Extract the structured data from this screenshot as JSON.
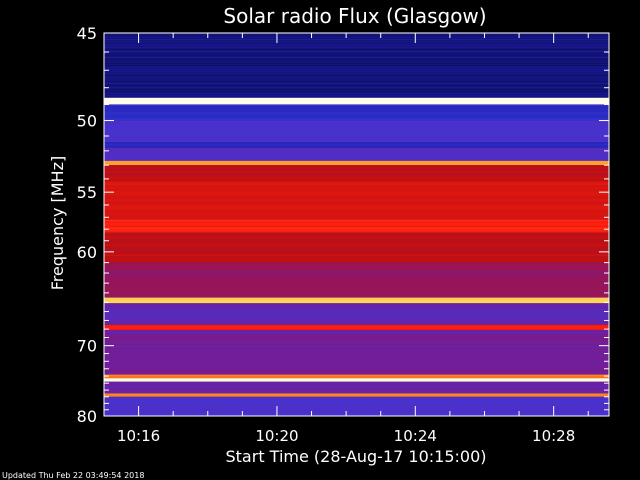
{
  "chart_data": {
    "type": "heatmap",
    "title": "Solar radio Flux (Glasgow)",
    "xlabel": "Start Time (28-Aug-17 10:15:00)",
    "ylabel": "Frequency [MHz]",
    "footer": "Updated Thu Feb 22 03:49:54 2018",
    "x_ticks": [
      "10:16",
      "10:20",
      "10:24",
      "10:28"
    ],
    "x_tick_minutes": [
      1,
      5,
      9,
      13
    ],
    "x_range_minutes": [
      0,
      14.6
    ],
    "y_ticks": [
      45,
      50,
      55,
      60,
      70,
      80
    ],
    "y_range_mhz": [
      45,
      80
    ],
    "y_scale": "reciprocal",
    "colormap": [
      "#0a0a40",
      "#1a1aa0",
      "#3a3ae0",
      "#7a1a90",
      "#c01010",
      "#ff2010",
      "#ff8c20",
      "#ffe060",
      "#ffffff"
    ],
    "frequency_bands": [
      {
        "f0": 45,
        "f1": 48.6,
        "level": 0.08
      },
      {
        "f0": 48.6,
        "f1": 49.0,
        "level": 0.98
      },
      {
        "f0": 49.0,
        "f1": 50.0,
        "level": 0.2
      },
      {
        "f0": 50.0,
        "f1": 51.4,
        "level": 0.28
      },
      {
        "f0": 51.4,
        "f1": 51.8,
        "level": 0.18
      },
      {
        "f0": 51.8,
        "f1": 52.7,
        "level": 0.3
      },
      {
        "f0": 52.7,
        "f1": 53.0,
        "level": 0.78
      },
      {
        "f0": 53.0,
        "f1": 54.2,
        "level": 0.5
      },
      {
        "f0": 54.2,
        "f1": 57.2,
        "level": 0.55
      },
      {
        "f0": 57.2,
        "f1": 58.3,
        "level": 0.62
      },
      {
        "f0": 58.3,
        "f1": 61.0,
        "level": 0.5
      },
      {
        "f0": 61.0,
        "f1": 64.5,
        "level": 0.42
      },
      {
        "f0": 64.5,
        "f1": 65.1,
        "level": 0.86
      },
      {
        "f0": 65.1,
        "f1": 67.5,
        "level": 0.32
      },
      {
        "f0": 67.5,
        "f1": 68.1,
        "level": 0.62
      },
      {
        "f0": 68.1,
        "f1": 73.8,
        "level": 0.36
      },
      {
        "f0": 73.8,
        "f1": 74.3,
        "level": 0.72
      },
      {
        "f0": 74.3,
        "f1": 74.8,
        "level": 0.98
      },
      {
        "f0": 74.8,
        "f1": 76.5,
        "level": 0.34
      },
      {
        "f0": 76.5,
        "f1": 77.0,
        "level": 0.74
      },
      {
        "f0": 77.0,
        "f1": 80.0,
        "level": 0.28
      }
    ]
  }
}
